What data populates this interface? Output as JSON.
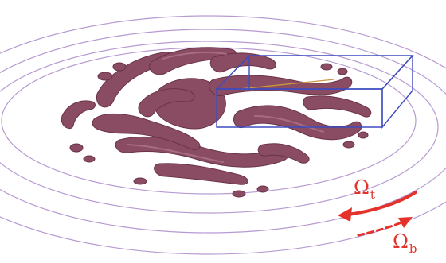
{
  "labels": {
    "omega_top": {
      "symbol": "Ω",
      "subscript": "t"
    },
    "omega_bottom": {
      "symbol": "Ω",
      "subscript": "b"
    }
  },
  "colors": {
    "ring": "#b79ad2",
    "arm_fill": "#8a4c63",
    "arm_edge": "#6a3349",
    "arm_highlight": "#b27a90",
    "box": "#3d4bbd",
    "inner_line": "#c99a44",
    "arrow": "#e4322b"
  }
}
